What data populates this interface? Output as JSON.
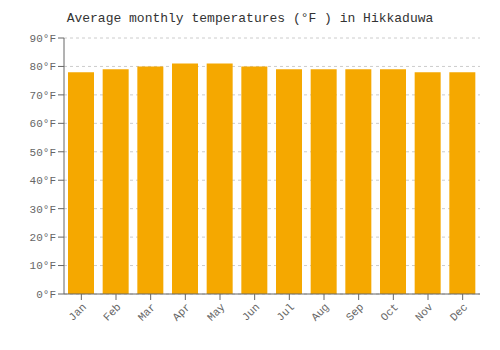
{
  "chart_data": {
    "type": "bar",
    "title": "Average monthly temperatures (°F ) in Hikkaduwa",
    "categories": [
      "Jan",
      "Feb",
      "Mar",
      "Apr",
      "May",
      "Jun",
      "Jul",
      "Aug",
      "Sep",
      "Oct",
      "Nov",
      "Dec"
    ],
    "values": [
      78,
      79,
      80,
      81,
      81,
      80,
      79,
      79,
      79,
      79,
      78,
      78
    ],
    "color": "#F5A800",
    "ylim": [
      0,
      90
    ],
    "yticks": [
      {
        "value": 0,
        "label": "0°F"
      },
      {
        "value": 10,
        "label": "10°F"
      },
      {
        "value": 20,
        "label": "20°F"
      },
      {
        "value": 30,
        "label": "30°F"
      },
      {
        "value": 40,
        "label": "40°F"
      },
      {
        "value": 50,
        "label": "50°F"
      },
      {
        "value": 60,
        "label": "60°F"
      },
      {
        "value": 70,
        "label": "70°F"
      },
      {
        "value": 80,
        "label": "80°F"
      },
      {
        "value": 90,
        "label": "90°F"
      }
    ],
    "grid": true
  }
}
